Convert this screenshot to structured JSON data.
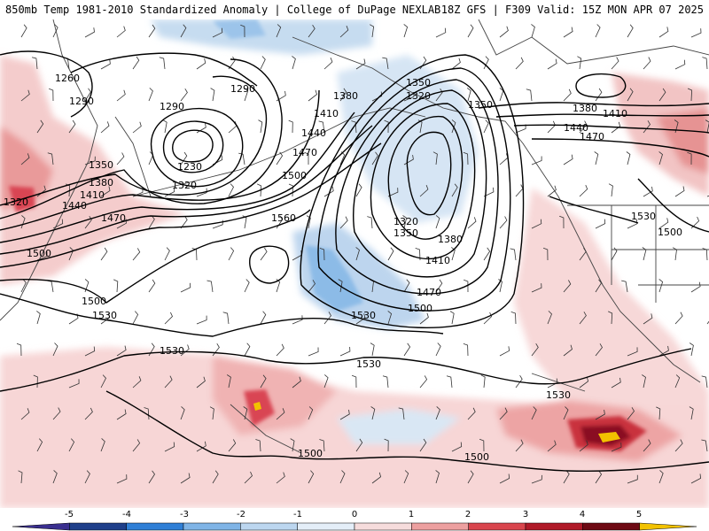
{
  "header": {
    "title_left": "850mb Temp 1981-2010 Standardized Anomaly | College of DuPage NEXLAB",
    "title_right": "18Z GFS | F309 Valid: 15Z MON APR 07 2025"
  },
  "contour_labels": {
    "l1260": "1260",
    "l1290a": "1290",
    "l1290b": "1290",
    "l1290c": "1290",
    "l1230": "1230",
    "l1320a": "1320",
    "l1320b": "1320",
    "l1320c": "1320",
    "l1320d": "1320",
    "l1350a": "1350",
    "l1350b": "1350",
    "l1350c": "1350",
    "l1350d": "1350",
    "l1380a": "1380",
    "l1380b": "1380",
    "l1380c": "1380",
    "l1380d": "1380",
    "l1410a": "1410",
    "l1410b": "1410",
    "l1410c": "1410",
    "l1410d": "1410",
    "l1440a": "1440",
    "l1440b": "1440",
    "l1440c": "1440",
    "l1470a": "1470",
    "l1470b": "1470",
    "l1470c": "1470",
    "l1470d": "1470",
    "l1500a": "1500",
    "l1500b": "1500",
    "l1500c": "1500",
    "l1500d": "1500",
    "l1500e": "1500",
    "l1500f": "1500",
    "l1500g": "1500",
    "l1530a": "1530",
    "l1530b": "1530",
    "l1530c": "1530",
    "l1530d": "1530",
    "l1530e": "1530",
    "l1530f": "1530",
    "l1560": "1560"
  },
  "colorbar": {
    "ticks": [
      "-5",
      "-4",
      "-3",
      "-2",
      "-1",
      "0",
      "1",
      "2",
      "3",
      "4",
      "5"
    ],
    "colors": [
      "#3a2f8f",
      "#1f3f8a",
      "#2f7fd6",
      "#7fb4e6",
      "#bcd6ef",
      "#e4eef8",
      "#f6dcdc",
      "#eda0a0",
      "#d9454d",
      "#b01a28",
      "#6e0a14",
      "#f2c200"
    ]
  }
}
